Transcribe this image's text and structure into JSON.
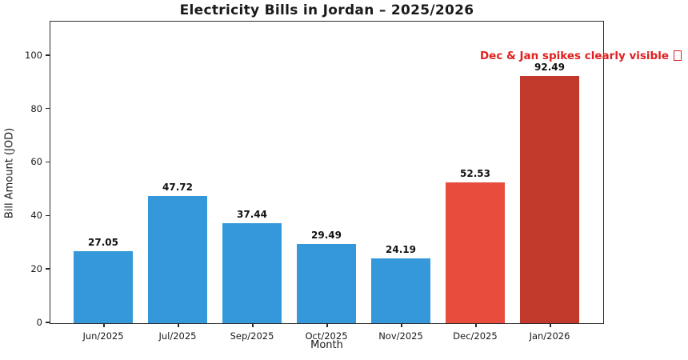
{
  "chart_data": {
    "type": "bar",
    "title": "Electricity Bills in Jordan – 2025/2026",
    "xlabel": "Month",
    "ylabel": "Bill Amount (JOD)",
    "categories": [
      "Jun/2025",
      "Jul/2025",
      "Sep/2025",
      "Oct/2025",
      "Nov/2025",
      "Dec/2025",
      "Jan/2026"
    ],
    "values": [
      27.05,
      47.72,
      37.44,
      29.49,
      24.19,
      52.53,
      92.49
    ],
    "value_labels": [
      "27.05",
      "47.72",
      "37.44",
      "29.49",
      "24.19",
      "52.53",
      "92.49"
    ],
    "bar_colors": [
      "#3498db",
      "#3498db",
      "#3498db",
      "#3498db",
      "#3498db",
      "#e74c3c",
      "#c0392b"
    ],
    "yticks": [
      0,
      20,
      40,
      60,
      80,
      100
    ],
    "ylim": [
      0,
      112.5
    ],
    "grid": false,
    "legend": null,
    "annotation": {
      "text": "Dec & Jan spikes clearly visible",
      "trailing_missing_glyph": true,
      "color": "#e02020",
      "position": "top-right"
    },
    "colors": {
      "bar_blue": "#3498db",
      "bar_red": "#e74c3c",
      "bar_dark_red": "#c0392b",
      "spine": "#2b2b2b",
      "text": "#1a1a1a"
    }
  }
}
